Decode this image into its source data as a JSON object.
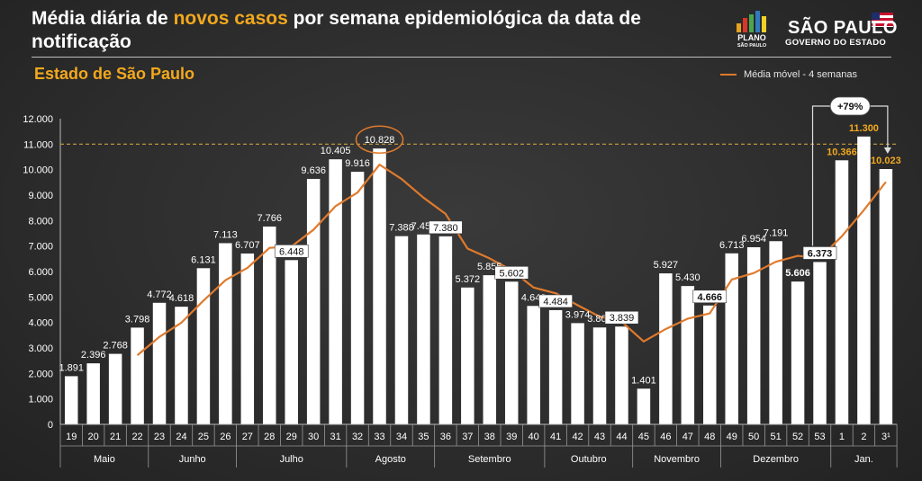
{
  "header": {
    "title_part1": "Média diária de ",
    "title_highlight": "novos casos",
    "title_part2": " por semana epidemiológica da data de notificação",
    "subtitle": "Estado de São Paulo",
    "legend_label": "Média móvel - 4 semanas",
    "logo_plano_line1": "PLANO",
    "logo_plano_line2": "SÃO PAULO",
    "logo_sp_name": "SÃO PAULO",
    "logo_sp_gov": "GOVERNO DO ESTADO"
  },
  "colors": {
    "background": "#2b2b2b",
    "bar": "#ffffff",
    "moving_average": "#e07a2c",
    "highlight_text": "#f2a81d",
    "reference_line": "#c8a040"
  },
  "chart_data": {
    "type": "bar",
    "categories": [
      "19",
      "20",
      "21",
      "22",
      "23",
      "24",
      "25",
      "26",
      "27",
      "28",
      "29",
      "30",
      "31",
      "32",
      "33",
      "34",
      "35",
      "36",
      "37",
      "38",
      "39",
      "40",
      "41",
      "42",
      "43",
      "44",
      "45",
      "46",
      "47",
      "48",
      "49",
      "50",
      "51",
      "52",
      "53",
      "1",
      "2",
      "3¹"
    ],
    "values": [
      1891,
      2396,
      2768,
      3798,
      4772,
      4618,
      6131,
      7113,
      6707,
      7766,
      6448,
      9636,
      10405,
      9916,
      10828,
      7388,
      7454,
      7380,
      5372,
      5855,
      5602,
      4649,
      4484,
      3974,
      3803,
      3839,
      1401,
      5927,
      5430,
      4666,
      6713,
      6954,
      7191,
      5606,
      6373,
      10366,
      11300,
      10023
    ],
    "value_labels": [
      "1.891",
      "2.396",
      "2.768",
      "3.798",
      "4.772",
      "4.618",
      "6.131",
      "7.113",
      "6.707",
      "7.766",
      "6.448",
      "9.636",
      "10.405",
      "9.916",
      "10.828",
      "7.388",
      "7.454",
      "7.380",
      "5.372",
      "5.855",
      "5.602",
      "4.649",
      "4.484",
      "3.974",
      "3.803",
      "3.839",
      "1.401",
      "5.927",
      "5.430",
      "4.666",
      "6.713",
      "6.954",
      "7.191",
      "5.606",
      "6.373",
      "10.366",
      "11.300",
      "10.023"
    ],
    "moving_average": [
      null,
      null,
      null,
      2713,
      3434,
      3992,
      4855,
      5659,
      6142,
      6929,
      6984,
      7639,
      8564,
      9101,
      10196,
      9634,
      8896,
      8262,
      6899,
      6515,
      6052,
      5370,
      5148,
      4677,
      4228,
      4025,
      3254,
      3743,
      4150,
      4356,
      5684,
      5941,
      6381,
      6616,
      6531,
      7384,
      8411,
      9516
    ],
    "y_ticks": [
      "0",
      "1.000",
      "2.000",
      "3.000",
      "4.000",
      "5.000",
      "6.000",
      "7.000",
      "8.000",
      "9.000",
      "10.000",
      "11.000",
      "12.000"
    ],
    "ylim": [
      0,
      12000
    ],
    "reference_line_value": 11000,
    "months": [
      {
        "label": "Maio",
        "from": 0,
        "to": 3
      },
      {
        "label": "Junho",
        "from": 4,
        "to": 7
      },
      {
        "label": "Julho",
        "from": 8,
        "to": 12
      },
      {
        "label": "Agosto",
        "from": 13,
        "to": 16
      },
      {
        "label": "Setembro",
        "from": 17,
        "to": 21
      },
      {
        "label": "Outubro",
        "from": 22,
        "to": 25
      },
      {
        "label": "Novembro",
        "from": 26,
        "to": 29
      },
      {
        "label": "Dezembro",
        "from": 30,
        "to": 34
      },
      {
        "label": "Jan.",
        "from": 35,
        "to": 37
      }
    ],
    "boxed_labels": [
      10,
      17,
      20,
      22,
      25,
      29,
      34
    ],
    "bold_labels": [
      29,
      33,
      34
    ],
    "highlighted_labels": [
      35,
      36,
      37
    ],
    "circled_label": 14,
    "annotation": {
      "text": "+79%",
      "from": 34,
      "to": 37
    },
    "grid": false,
    "legend_position": "top-right"
  }
}
